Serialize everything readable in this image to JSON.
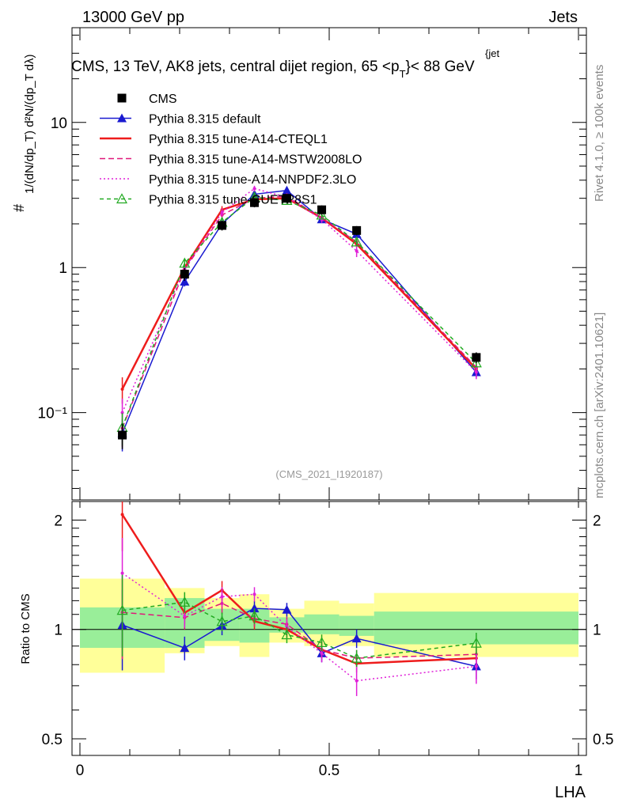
{
  "header": {
    "left": "13000 GeV pp",
    "right": "Jets"
  },
  "side_labels": {
    "rivet": "Rivet 4.1.0, ≥ 100k events",
    "mcplots": "mcplots.cern.ch [arXiv:2401.10621]"
  },
  "chart_data": {
    "type": "line",
    "title": "CMS, 13 TeV, AK8 jets, central dijet region, 65 <p",
    "title_sub": "T",
    "title_sup": "{jet",
    "title_end": "}< 88 GeV",
    "ylabel": "1/(dN/dp_T) d²N/(dp_T dλ)",
    "ratio_ylabel": "Ratio to CMS",
    "xlabel": "LHA",
    "analysis_id": "(CMS_2021_I1920187)",
    "x_ticks": [
      "0",
      "0.5",
      "1"
    ],
    "y_ticks": [
      "10",
      "1",
      "10⁻¹"
    ],
    "ratio_ticks": [
      "2",
      "1",
      "0.5",
      "2",
      "1",
      "0.5"
    ],
    "xlim": [
      0,
      1
    ],
    "ylim": [
      0.025,
      45
    ],
    "ratio_ylim": [
      0.45,
      2.25
    ],
    "x": [
      0.085,
      0.21,
      0.285,
      0.35,
      0.415,
      0.485,
      0.555,
      0.795
    ],
    "x_edges": [
      0,
      0.17,
      0.25,
      0.32,
      0.38,
      0.45,
      0.52,
      0.59,
      1.0
    ],
    "band_inner": [
      [
        0.89,
        1.15
      ],
      [
        0.89,
        1.22
      ],
      [
        0.93,
        1.14
      ],
      [
        0.92,
        1.14
      ],
      [
        0.98,
        1.08
      ],
      [
        0.97,
        1.1
      ],
      [
        0.96,
        1.09
      ],
      [
        0.91,
        1.12
      ]
    ],
    "band_outer": [
      [
        0.76,
        1.38
      ],
      [
        0.86,
        1.3
      ],
      [
        0.9,
        1.22
      ],
      [
        0.84,
        1.25
      ],
      [
        0.92,
        1.14
      ],
      [
        0.9,
        1.2
      ],
      [
        0.9,
        1.18
      ],
      [
        0.84,
        1.26
      ]
    ],
    "series": [
      {
        "name": "CMS",
        "color": "#000000",
        "dash": "",
        "marker": "square",
        "values": [
          0.07,
          0.9,
          1.95,
          2.8,
          3.0,
          2.5,
          1.8,
          0.24
        ],
        "errors": [
          0.014,
          0.09,
          0.15,
          0.2,
          0.2,
          0.18,
          0.13,
          0.02
        ]
      },
      {
        "name": "Pythia 8.315 default",
        "color": "#1a1ad0",
        "dash": "",
        "marker": "triangle",
        "values": [
          0.072,
          0.8,
          2.0,
          3.2,
          3.4,
          2.15,
          1.7,
          0.19
        ],
        "errors": [
          0.018,
          0.06,
          0.12,
          0.15,
          0.15,
          0.12,
          0.1,
          0.015
        ]
      },
      {
        "name": "Pythia 8.315 tune-A14-CTEQL1",
        "color": "#ee1c1c",
        "dash": "",
        "marker": "none",
        "values": [
          0.145,
          1.0,
          2.5,
          2.95,
          3.0,
          2.2,
          1.45,
          0.2
        ],
        "errors": [
          0.03,
          0.07,
          0.15,
          0.15,
          0.15,
          0.12,
          0.08,
          0.015
        ]
      },
      {
        "name": "Pythia 8.315 tune-A14-MSTW2008LO",
        "color": "#e0187a",
        "dash": "7,4",
        "marker": "none",
        "values": [
          0.078,
          0.97,
          2.3,
          3.0,
          3.1,
          2.2,
          1.5,
          0.205
        ],
        "errors": [
          0.02,
          0.07,
          0.15,
          0.15,
          0.15,
          0.12,
          0.08,
          0.015
        ]
      },
      {
        "name": "Pythia 8.315 tune-A14-NNPDF2.3LO",
        "color": "#e020d8",
        "dash": "2,3",
        "marker": "none",
        "values": [
          0.1,
          0.98,
          2.4,
          3.5,
          3.05,
          2.15,
          1.3,
          0.19
        ],
        "errors": [
          0.025,
          0.07,
          0.15,
          0.16,
          0.15,
          0.12,
          0.12,
          0.02
        ]
      },
      {
        "name": "Pythia 8.315 tune-CUETP8S1",
        "color": "#22aa22",
        "dash": "5,4",
        "marker": "triangle-open",
        "values": [
          0.079,
          1.07,
          2.05,
          3.05,
          2.9,
          2.3,
          1.5,
          0.22
        ],
        "errors": [
          0.02,
          0.07,
          0.12,
          0.15,
          0.15,
          0.12,
          0.08,
          0.015
        ]
      }
    ]
  }
}
